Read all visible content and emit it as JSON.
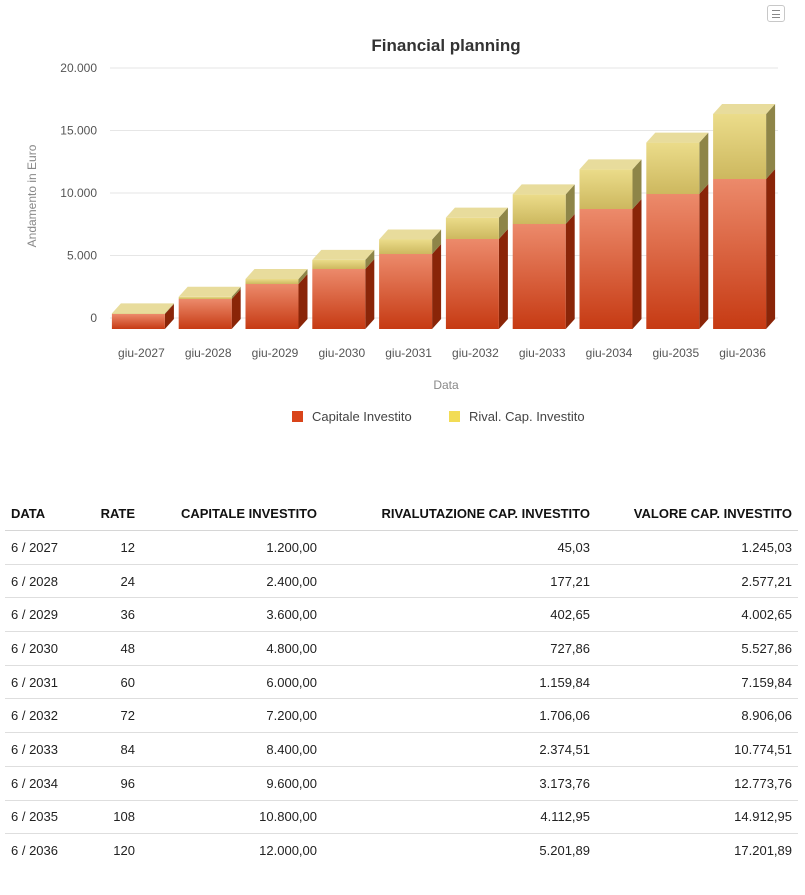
{
  "chart_data": {
    "type": "bar",
    "title": "Financial planning",
    "xlabel": "Data",
    "ylabel": "Andamento in Euro",
    "ylim": [
      0,
      20000
    ],
    "yticks": [
      0,
      5000,
      10000,
      15000,
      20000
    ],
    "ytick_labels": [
      "0",
      "5.000",
      "10.000",
      "15.000",
      "20.000"
    ],
    "stacked": true,
    "style": "3d",
    "legend_position": "bottom-center",
    "categories": [
      "giu-2027",
      "giu-2028",
      "giu-2029",
      "giu-2030",
      "giu-2031",
      "giu-2032",
      "giu-2033",
      "giu-2034",
      "giu-2035",
      "giu-2036"
    ],
    "series": [
      {
        "name": "Capitale Investito",
        "color": "#d9441a",
        "values": [
          1200,
          2400,
          3600,
          4800,
          6000,
          7200,
          8400,
          9600,
          10800,
          12000
        ]
      },
      {
        "name": "Rival. Cap. Investito",
        "color": "#f2dc55",
        "values": [
          45.03,
          177.21,
          402.65,
          727.86,
          1159.84,
          1706.06,
          2374.51,
          3173.76,
          4112.95,
          5201.89
        ]
      }
    ]
  },
  "table": {
    "headers": [
      "DATA",
      "RATE",
      "CAPITALE INVESTITO",
      "RIVALUTAZIONE CAP. INVESTITO",
      "VALORE CAP. INVESTITO"
    ],
    "rows": [
      [
        "6 / 2027",
        "12",
        "1.200,00",
        "45,03",
        "1.245,03"
      ],
      [
        "6 / 2028",
        "24",
        "2.400,00",
        "177,21",
        "2.577,21"
      ],
      [
        "6 / 2029",
        "36",
        "3.600,00",
        "402,65",
        "4.002,65"
      ],
      [
        "6 / 2030",
        "48",
        "4.800,00",
        "727,86",
        "5.527,86"
      ],
      [
        "6 / 2031",
        "60",
        "6.000,00",
        "1.159,84",
        "7.159,84"
      ],
      [
        "6 / 2032",
        "72",
        "7.200,00",
        "1.706,06",
        "8.906,06"
      ],
      [
        "6 / 2033",
        "84",
        "8.400,00",
        "2.374,51",
        "10.774,51"
      ],
      [
        "6 / 2034",
        "96",
        "9.600,00",
        "3.173,76",
        "12.773,76"
      ],
      [
        "6 / 2035",
        "108",
        "10.800,00",
        "4.112,95",
        "14.912,95"
      ],
      [
        "6 / 2036",
        "120",
        "12.000,00",
        "5.201,89",
        "17.201,89"
      ]
    ]
  }
}
